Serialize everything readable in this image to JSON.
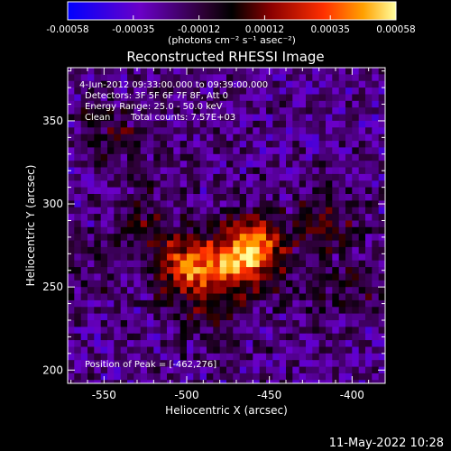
{
  "colorbar": {
    "ticks": [
      "-0.00058",
      "-0.00035",
      "-0.00012",
      "0.00012",
      "0.00035",
      "0.00058"
    ],
    "units_line": "(photons cm⁻² s⁻¹ asec⁻²)",
    "range": [
      -0.00058,
      0.00058
    ]
  },
  "footer": {
    "timestamp": "11-May-2022 10:28"
  },
  "chart_data": {
    "type": "heatmap",
    "title": "Reconstructed RHESSI Image",
    "xlabel": "Heliocentric X (arcsec)",
    "ylabel": "Heliocentric Y (arcsec)",
    "xlim": [
      -572,
      -380
    ],
    "ylim": [
      192,
      382
    ],
    "x_ticks": [
      -550,
      -500,
      -450,
      -400
    ],
    "y_ticks": [
      200,
      250,
      300,
      350
    ],
    "annotations": [
      "4-Jun-2012 09:33:00.000 to 09:39:00.000",
      "Detectors: 3F 5F 6F 7F 8F, Att 0",
      "Energy Range: 25.0 - 50.0 keV",
      "Clean",
      "Total counts: 7.57E+03",
      "Position of Peak = [-462,276]"
    ],
    "peak": [
      -462,
      276
    ],
    "sources": [
      {
        "x": -462,
        "y": 276,
        "value": 0.00058
      },
      {
        "x": -503,
        "y": 264,
        "value": 0.0005
      },
      {
        "x": -478,
        "y": 262,
        "value": 0.00035
      },
      {
        "x": -418,
        "y": 292,
        "value": 0.00022
      },
      {
        "x": -548,
        "y": 345,
        "value": 0.00018
      },
      {
        "x": -528,
        "y": 293,
        "value": 0.00016
      },
      {
        "x": -560,
        "y": 260,
        "value": 0.0001
      },
      {
        "x": -430,
        "y": 250,
        "value": 0.0001
      },
      {
        "x": -486,
        "y": 232,
        "value": 0.00014
      },
      {
        "x": -396,
        "y": 252,
        "value": 0.00012
      }
    ]
  }
}
